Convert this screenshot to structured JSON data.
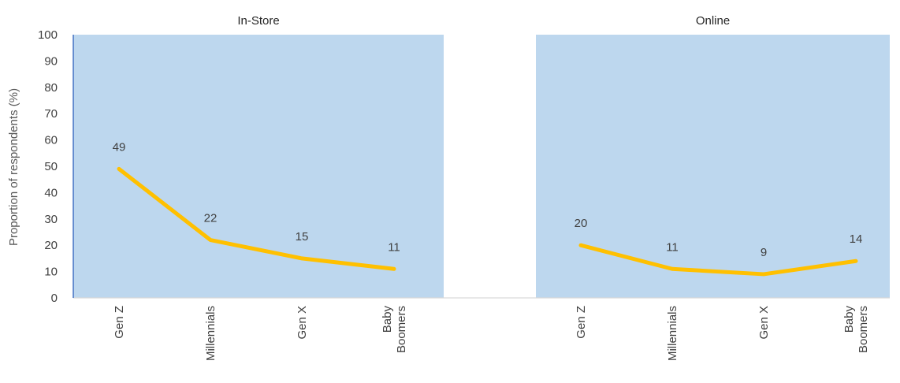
{
  "chart_data": {
    "type": "line",
    "ylabel": "Proportion of respondents (%)",
    "ylim": [
      0,
      100
    ],
    "yticks": [
      0,
      10,
      20,
      30,
      40,
      50,
      60,
      70,
      80,
      90,
      100
    ],
    "grid": false,
    "panels": [
      {
        "title": "In-Store",
        "categories": [
          "Gen Z",
          "Millennials",
          "Gen X",
          "Baby Boomers"
        ],
        "category_lines": [
          [
            "Gen Z"
          ],
          [
            "Millennials"
          ],
          [
            "Gen X"
          ],
          [
            "Baby",
            "Boomers"
          ]
        ],
        "values": [
          49,
          22,
          15,
          11
        ]
      },
      {
        "title": "Online",
        "categories": [
          "Gen Z",
          "Millennials",
          "Gen X",
          "Baby Boomers"
        ],
        "category_lines": [
          [
            "Gen Z"
          ],
          [
            "Millennials"
          ],
          [
            "Gen X"
          ],
          [
            "Baby",
            "Boomers"
          ]
        ],
        "values": [
          20,
          11,
          9,
          14
        ]
      }
    ]
  },
  "colors": {
    "line": "#FFC000",
    "panel_background": "#BDD7EE",
    "axis": "#D9D9D9",
    "y_axis_line": "#4472C4",
    "text": "#404040"
  }
}
